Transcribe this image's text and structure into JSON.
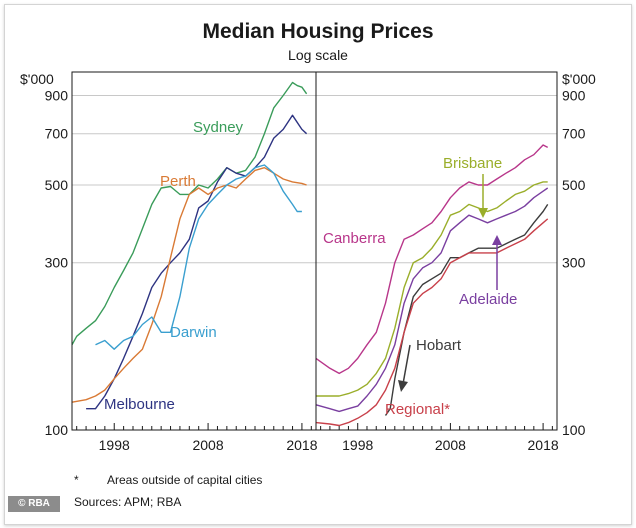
{
  "chart_data": {
    "type": "line",
    "title": "Median Housing Prices",
    "subtitle": "Log scale",
    "y_unit": "$'000",
    "y_scale": "log",
    "ylim": [
      100,
      1050
    ],
    "y_ticks": [
      100,
      300,
      500,
      700,
      900
    ],
    "y_tick_labels": [
      "100",
      "300",
      "500",
      "700",
      "900"
    ],
    "grid": "horizontal",
    "panels": [
      {
        "name": "capitals-left",
        "xlim": [
          1993.5,
          2019.5
        ],
        "x_ticks": [
          1998,
          2008,
          2018
        ],
        "x_tick_labels": [
          "1998",
          "2008",
          "2018"
        ],
        "series": [
          {
            "name": "Sydney",
            "color": "#3a9c5a",
            "x": [
              1993.5,
              1994,
              1995,
              1996,
              1997,
              1998,
              1999,
              2000,
              2001,
              2002,
              2003,
              2004,
              2005,
              2006,
              2007,
              2008,
              2009,
              2010,
              2011,
              2012,
              2013,
              2014,
              2015,
              2016,
              2017,
              2017.5,
              2018,
              2018.5
            ],
            "y": [
              175,
              185,
              195,
              205,
              225,
              255,
              285,
              320,
              375,
              440,
              490,
              495,
              470,
              470,
              500,
              490,
              520,
              560,
              540,
              550,
              600,
              700,
              830,
              900,
              980,
              960,
              950,
              910
            ]
          },
          {
            "name": "Melbourne",
            "color": "#2e3482",
            "x": [
              1995,
              1996,
              1997,
              1998,
              1999,
              2000,
              2001,
              2002,
              2003,
              2004,
              2005,
              2006,
              2007,
              2008,
              2009,
              2010,
              2011,
              2012,
              2013,
              2014,
              2015,
              2016,
              2017,
              2018,
              2018.5
            ],
            "y": [
              115,
              115,
              125,
              140,
              160,
              185,
              215,
              255,
              280,
              300,
              320,
              350,
              430,
              450,
              510,
              560,
              540,
              530,
              560,
              600,
              680,
              720,
              790,
              720,
              700
            ]
          },
          {
            "name": "Perth",
            "color": "#d97a35",
            "x": [
              1993.5,
              1995,
              1996,
              1997,
              1998,
              1999,
              2000,
              2001,
              2002,
              2003,
              2004,
              2005,
              2006,
              2007,
              2008,
              2009,
              2010,
              2011,
              2012,
              2013,
              2014,
              2015,
              2016,
              2017,
              2018,
              2018.5
            ],
            "y": [
              120,
              122,
              125,
              130,
              140,
              150,
              160,
              170,
              200,
              240,
              310,
              400,
              470,
              490,
              470,
              490,
              500,
              490,
              520,
              550,
              560,
              540,
              520,
              510,
              505,
              500
            ]
          },
          {
            "name": "Darwin",
            "color": "#3a9fcf",
            "x": [
              1996,
              1997,
              1998,
              1999,
              2000,
              2001,
              2002,
              2003,
              2004,
              2005,
              2006,
              2007,
              2008,
              2009,
              2010,
              2011,
              2012,
              2013,
              2014,
              2015,
              2016,
              2017,
              2017.5,
              2018
            ],
            "y": [
              175,
              180,
              170,
              180,
              185,
              200,
              210,
              190,
              190,
              240,
              330,
              400,
              440,
              470,
              500,
              520,
              530,
              560,
              570,
              540,
              480,
              440,
              420,
              420
            ]
          }
        ],
        "annotations": [
          {
            "text": "Sydney",
            "color": "#3a9c5a"
          },
          {
            "text": "Perth",
            "color": "#d97a35"
          },
          {
            "text": "Darwin",
            "color": "#3a9fcf"
          },
          {
            "text": "Melbourne",
            "color": "#2e3482"
          }
        ]
      },
      {
        "name": "capitals-right",
        "xlim": [
          1993.5,
          2019.5
        ],
        "x_ticks": [
          1998,
          2008,
          2018
        ],
        "x_tick_labels": [
          "1998",
          "2008",
          "2018"
        ],
        "series": [
          {
            "name": "Canberra",
            "color": "#b8368a",
            "x": [
              1993.5,
              1995,
              1996,
              1997,
              1998,
              1999,
              2000,
              2001,
              2002,
              2003,
              2004,
              2005,
              2006,
              2007,
              2008,
              2009,
              2010,
              2011,
              2012,
              2013,
              2014,
              2015,
              2016,
              2017,
              2018,
              2018.5
            ],
            "y": [
              160,
              150,
              145,
              150,
              160,
              175,
              190,
              230,
              300,
              350,
              360,
              375,
              390,
              420,
              460,
              490,
              510,
              500,
              500,
              520,
              540,
              560,
              590,
              610,
              650,
              640
            ]
          },
          {
            "name": "Brisbane",
            "color": "#9aae2a",
            "x": [
              1993.5,
              1995,
              1996,
              1997,
              1998,
              1999,
              2000,
              2001,
              2002,
              2003,
              2004,
              2005,
              2006,
              2007,
              2008,
              2009,
              2010,
              2011,
              2012,
              2013,
              2014,
              2015,
              2016,
              2017,
              2018,
              2018.5
            ],
            "y": [
              125,
              125,
              125,
              127,
              130,
              135,
              145,
              160,
              195,
              255,
              300,
              310,
              330,
              360,
              410,
              420,
              440,
              430,
              420,
              430,
              450,
              470,
              480,
              500,
              510,
              510
            ]
          },
          {
            "name": "Adelaide",
            "color": "#7a3fa0",
            "x": [
              1993.5,
              1995,
              1996,
              1997,
              1998,
              1999,
              2000,
              2001,
              2002,
              2003,
              2004,
              2005,
              2006,
              2007,
              2008,
              2009,
              2010,
              2011,
              2012,
              2013,
              2014,
              2015,
              2016,
              2017,
              2018,
              2018.5
            ],
            "y": [
              118,
              115,
              113,
              115,
              117,
              125,
              135,
              150,
              175,
              230,
              270,
              290,
              300,
              320,
              370,
              390,
              410,
              400,
              390,
              400,
              410,
              420,
              435,
              460,
              480,
              490
            ]
          },
          {
            "name": "Hobart",
            "color": "#3c3c3c",
            "x": [
              2001,
              2001.5,
              2002,
              2003,
              2004,
              2005,
              2006,
              2007,
              2008,
              2009,
              2010,
              2011,
              2012,
              2013,
              2014,
              2015,
              2016,
              2017,
              2018,
              2018.5
            ],
            "y": [
              110,
              115,
              140,
              190,
              240,
              260,
              270,
              280,
              310,
              310,
              320,
              330,
              330,
              330,
              340,
              350,
              360,
              390,
              420,
              440
            ]
          },
          {
            "name": "Regional*",
            "color": "#c8404a",
            "x": [
              1993.5,
              1995,
              1996,
              1997,
              1998,
              1999,
              2000,
              2001,
              2002,
              2003,
              2004,
              2005,
              2006,
              2007,
              2008,
              2009,
              2010,
              2011,
              2012,
              2013,
              2014,
              2015,
              2016,
              2017,
              2018,
              2018.5
            ],
            "y": [
              105,
              104,
              103,
              105,
              108,
              112,
              118,
              130,
              150,
              190,
              230,
              245,
              255,
              270,
              300,
              310,
              320,
              320,
              320,
              320,
              330,
              340,
              350,
              370,
              390,
              400
            ]
          }
        ],
        "annotations": [
          {
            "text": "Canberra",
            "color": "#b8368a"
          },
          {
            "text": "Brisbane",
            "color": "#9aae2a"
          },
          {
            "text": "Adelaide",
            "color": "#7a3fa0"
          },
          {
            "text": "Hobart",
            "color": "#3c3c3c"
          },
          {
            "text": "Regional*",
            "color": "#c8404a"
          }
        ]
      }
    ]
  },
  "footnote": {
    "marker": "*",
    "text": "Areas outside of capital cities",
    "sources": "Sources:   APM; RBA"
  },
  "logo": {
    "text": "© RBA"
  }
}
